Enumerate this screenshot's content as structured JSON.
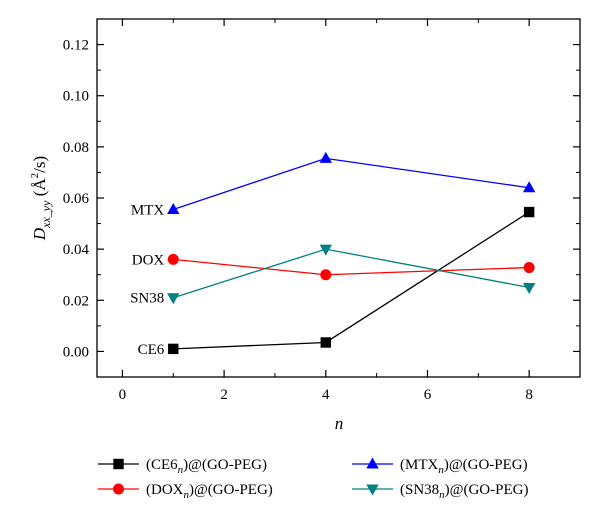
{
  "chart_data": {
    "type": "line",
    "title": "",
    "xlabel": "n",
    "ylabel": {
      "main": "D",
      "sub": "xx_yy",
      "unit_open": " (",
      "unit_A": "Å",
      "unit_sup": "2",
      "unit_close": "/s)"
    },
    "xlim": [
      -0.5,
      9.0
    ],
    "ylim": [
      -0.01,
      0.13
    ],
    "x_ticks": [
      0,
      2,
      4,
      6,
      8
    ],
    "y_ticks": [
      0.0,
      0.02,
      0.04,
      0.06,
      0.08,
      0.1,
      0.12
    ],
    "y_tick_labels": [
      "0.00",
      "0.02",
      "0.04",
      "0.06",
      "0.08",
      "0.10",
      "0.12"
    ],
    "x_tick_labels": [
      "0",
      "2",
      "4",
      "6",
      "8"
    ],
    "grid": false,
    "legend_placement": "bottom-outside",
    "x": [
      1,
      4,
      8
    ],
    "series": [
      {
        "key": "ce6",
        "label": "CE6",
        "legend": {
          "pre": "(CE6",
          "sub": "n",
          "post": ")@(GO-PEG)"
        },
        "values": [
          0.001,
          0.0035,
          0.0545
        ],
        "color": "#000000",
        "marker": "square"
      },
      {
        "key": "dox",
        "label": "DOX",
        "legend": {
          "pre": "(DOX",
          "sub": "n",
          "post": ")@(GO-PEG)"
        },
        "values": [
          0.036,
          0.03,
          0.0328
        ],
        "color": "#ff0000",
        "marker": "circle"
      },
      {
        "key": "mtx",
        "label": "MTX",
        "legend": {
          "pre": "(MTX",
          "sub": "n",
          "post": ")@(GO-PEG)"
        },
        "values": [
          0.0555,
          0.0755,
          0.064
        ],
        "color": "#0000ff",
        "marker": "triangle-up"
      },
      {
        "key": "sn38",
        "label": "SN38",
        "legend": {
          "pre": "(SN38",
          "sub": "n",
          "post": ")@(GO-PEG)"
        },
        "values": [
          0.021,
          0.04,
          0.025
        ],
        "color": "#008080",
        "marker": "triangle-down"
      }
    ]
  }
}
